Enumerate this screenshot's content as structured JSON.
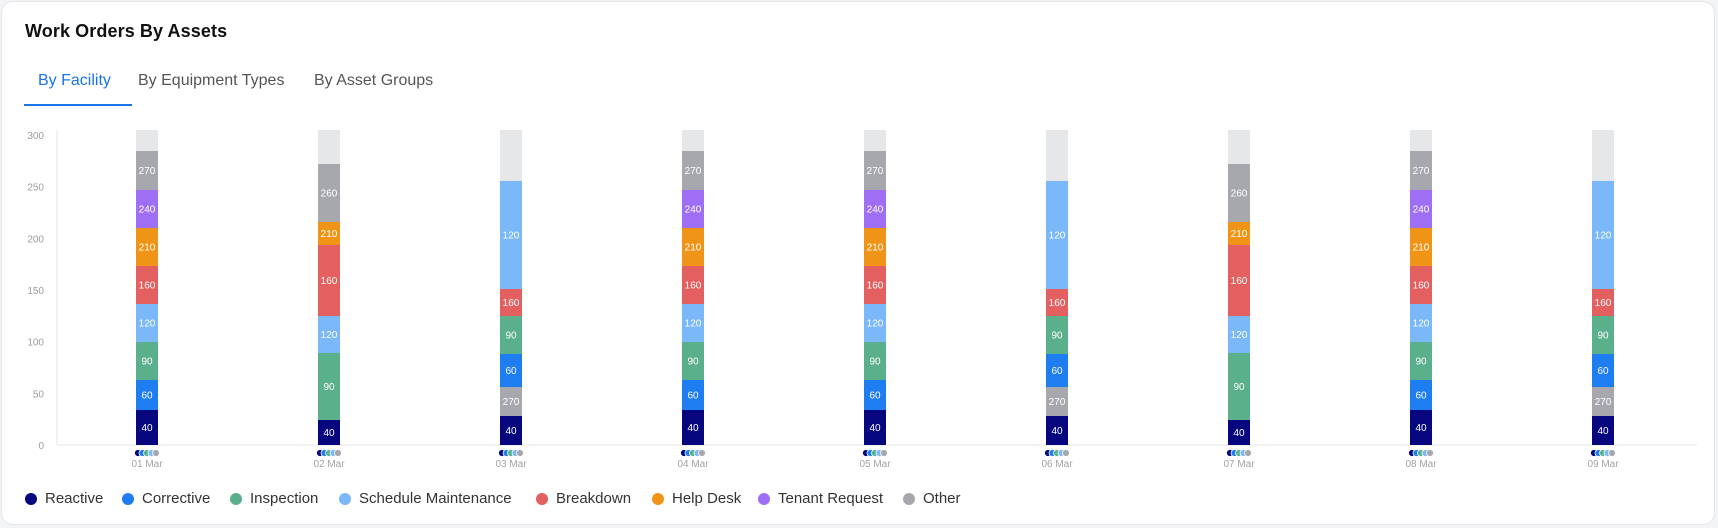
{
  "header": {
    "title": "Work Orders By Assets"
  },
  "tabs": [
    {
      "label": "By Facility",
      "active": true
    },
    {
      "label": "By Equipment Types",
      "active": false
    },
    {
      "label": "By Asset Groups",
      "active": false
    }
  ],
  "colors": {
    "Reactive": "#06067e",
    "Corrective": "#1e7df1",
    "Inspection": "#5bb08c",
    "Schedule Maintenance": "#7ab8f9",
    "Breakdown": "#e45f5f",
    "Help Desk": "#ef9416",
    "Tenant Request": "#9e6ff5",
    "Other": "#a6a8ad",
    "background": "#e6e7e9",
    "accent": "#1a73e8"
  },
  "legend": [
    "Reactive",
    "Corrective",
    "Inspection",
    "Schedule Maintenance",
    "Breakdown",
    "Help Desk",
    "Tenant Request",
    "Other"
  ],
  "chart_data": {
    "type": "bar",
    "stacked": true,
    "ylim": [
      0,
      300
    ],
    "yticks": [
      0,
      50,
      100,
      150,
      200,
      250,
      300
    ],
    "categories": [
      "01 Mar",
      "02 Mar",
      "03 Mar",
      "04 Mar",
      "05 Mar",
      "06 Mar",
      "07 Mar",
      "08 Mar",
      "09 Mar"
    ],
    "bars": [
      {
        "category": "01 Mar",
        "segments": [
          {
            "series": "Reactive",
            "label": "40",
            "height": 35
          },
          {
            "series": "Corrective",
            "label": "60",
            "height": 30
          },
          {
            "series": "Inspection",
            "label": "90",
            "height": 38
          },
          {
            "series": "Schedule Maintenance",
            "label": "120",
            "height": 38
          },
          {
            "series": "Breakdown",
            "label": "160",
            "height": 38
          },
          {
            "series": "Help Desk",
            "label": "210",
            "height": 38
          },
          {
            "series": "Tenant Request",
            "label": "240",
            "height": 38
          },
          {
            "series": "Other",
            "label": "270",
            "height": 39
          }
        ]
      },
      {
        "category": "02 Mar",
        "segments": [
          {
            "series": "Reactive",
            "label": "40",
            "height": 25
          },
          {
            "series": "Inspection",
            "label": "90",
            "height": 67
          },
          {
            "series": "Schedule Maintenance",
            "label": "120",
            "height": 37
          },
          {
            "series": "Breakdown",
            "label": "160",
            "height": 71
          },
          {
            "series": "Help Desk",
            "label": "210",
            "height": 23
          },
          {
            "series": "Other",
            "label": "260",
            "height": 58
          }
        ]
      },
      {
        "category": "03 Mar",
        "segments": [
          {
            "series": "Reactive",
            "label": "40",
            "height": 29
          },
          {
            "series": "Other",
            "label": "270",
            "height": 29
          },
          {
            "series": "Corrective",
            "label": "60",
            "height": 33
          },
          {
            "series": "Inspection",
            "label": "90",
            "height": 38
          },
          {
            "series": "Breakdown",
            "label": "160",
            "height": 27
          },
          {
            "series": "Schedule Maintenance",
            "label": "120",
            "height": 108
          }
        ]
      },
      {
        "category": "04 Mar",
        "segments": [
          {
            "series": "Reactive",
            "label": "40",
            "height": 35
          },
          {
            "series": "Corrective",
            "label": "60",
            "height": 30
          },
          {
            "series": "Inspection",
            "label": "90",
            "height": 38
          },
          {
            "series": "Schedule Maintenance",
            "label": "120",
            "height": 38
          },
          {
            "series": "Breakdown",
            "label": "160",
            "height": 38
          },
          {
            "series": "Help Desk",
            "label": "210",
            "height": 38
          },
          {
            "series": "Tenant Request",
            "label": "240",
            "height": 38
          },
          {
            "series": "Other",
            "label": "270",
            "height": 39
          }
        ]
      },
      {
        "category": "05 Mar",
        "segments": [
          {
            "series": "Reactive",
            "label": "40",
            "height": 35
          },
          {
            "series": "Corrective",
            "label": "60",
            "height": 30
          },
          {
            "series": "Inspection",
            "label": "90",
            "height": 38
          },
          {
            "series": "Schedule Maintenance",
            "label": "120",
            "height": 38
          },
          {
            "series": "Breakdown",
            "label": "160",
            "height": 38
          },
          {
            "series": "Help Desk",
            "label": "210",
            "height": 38
          },
          {
            "series": "Tenant Request",
            "label": "240",
            "height": 38
          },
          {
            "series": "Other",
            "label": "270",
            "height": 39
          }
        ]
      },
      {
        "category": "06 Mar",
        "segments": [
          {
            "series": "Reactive",
            "label": "40",
            "height": 29
          },
          {
            "series": "Other",
            "label": "270",
            "height": 29
          },
          {
            "series": "Corrective",
            "label": "60",
            "height": 33
          },
          {
            "series": "Inspection",
            "label": "90",
            "height": 38
          },
          {
            "series": "Breakdown",
            "label": "160",
            "height": 27
          },
          {
            "series": "Schedule Maintenance",
            "label": "120",
            "height": 108
          }
        ]
      },
      {
        "category": "07 Mar",
        "segments": [
          {
            "series": "Reactive",
            "label": "40",
            "height": 25
          },
          {
            "series": "Inspection",
            "label": "90",
            "height": 67
          },
          {
            "series": "Schedule Maintenance",
            "label": "120",
            "height": 37
          },
          {
            "series": "Breakdown",
            "label": "160",
            "height": 71
          },
          {
            "series": "Help Desk",
            "label": "210",
            "height": 23
          },
          {
            "series": "Other",
            "label": "260",
            "height": 58
          }
        ]
      },
      {
        "category": "08 Mar",
        "segments": [
          {
            "series": "Reactive",
            "label": "40",
            "height": 35
          },
          {
            "series": "Corrective",
            "label": "60",
            "height": 30
          },
          {
            "series": "Inspection",
            "label": "90",
            "height": 38
          },
          {
            "series": "Schedule Maintenance",
            "label": "120",
            "height": 38
          },
          {
            "series": "Breakdown",
            "label": "160",
            "height": 38
          },
          {
            "series": "Help Desk",
            "label": "210",
            "height": 38
          },
          {
            "series": "Tenant Request",
            "label": "240",
            "height": 38
          },
          {
            "series": "Other",
            "label": "270",
            "height": 39
          }
        ]
      },
      {
        "category": "09 Mar",
        "segments": [
          {
            "series": "Reactive",
            "label": "40",
            "height": 29
          },
          {
            "series": "Other",
            "label": "270",
            "height": 29
          },
          {
            "series": "Corrective",
            "label": "60",
            "height": 33
          },
          {
            "series": "Inspection",
            "label": "90",
            "height": 38
          },
          {
            "series": "Breakdown",
            "label": "160",
            "height": 27
          },
          {
            "series": "Schedule Maintenance",
            "label": "120",
            "height": 108
          }
        ]
      }
    ]
  }
}
